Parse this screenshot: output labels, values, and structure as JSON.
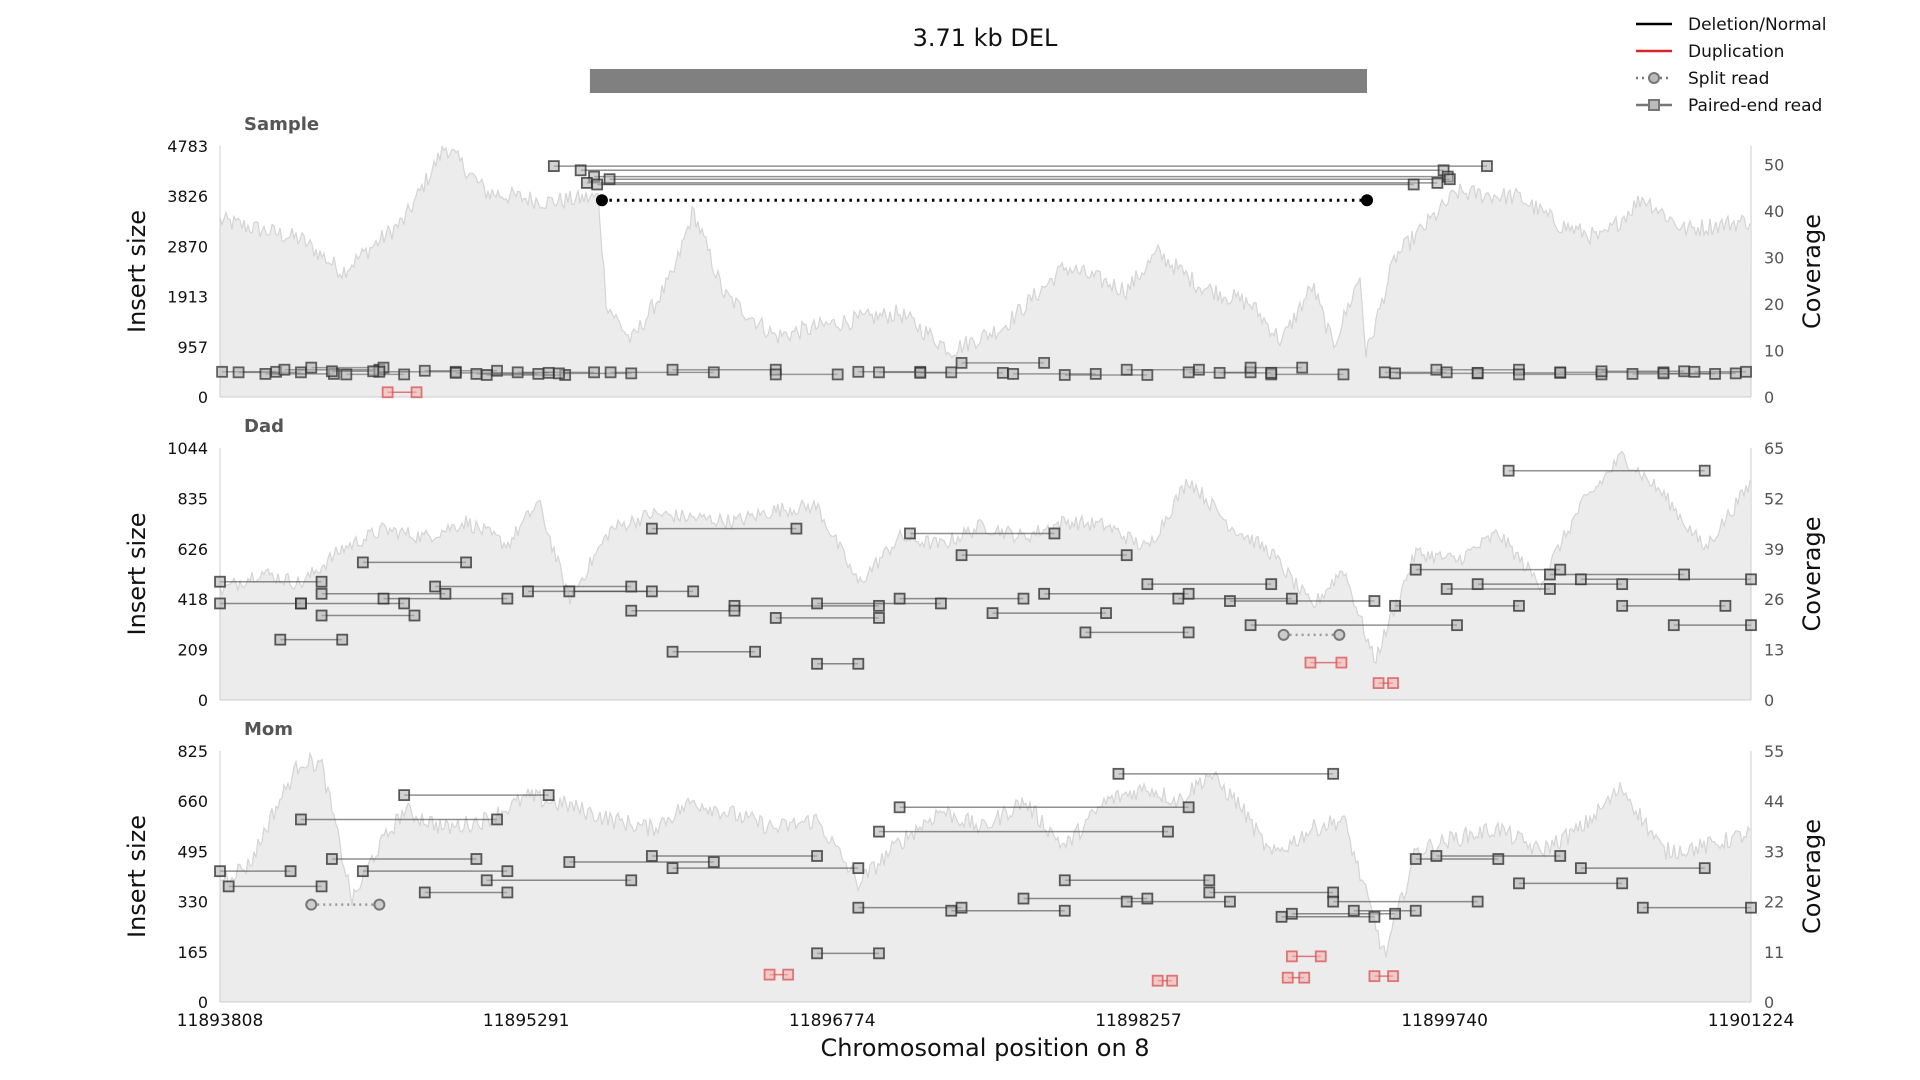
{
  "title": "3.71 kb DEL",
  "legend": [
    {
      "label": "Deletion/Normal",
      "style": "solid",
      "color": "#000000"
    },
    {
      "label": "Duplication",
      "style": "solid",
      "color": "#d62728"
    },
    {
      "label": "Split read",
      "style": "dotted-circle",
      "color": "#777777"
    },
    {
      "label": "Paired-end read",
      "style": "solid-square",
      "color": "#777777"
    }
  ],
  "colors": {
    "coverage_fill": "#ececec",
    "coverage_line": "#d4d4d4",
    "variant_bar": "#808080",
    "read": "#555555",
    "dup": "#e06060"
  },
  "xlabel": "Chromosomal position on 8",
  "x_ticks": [
    11893808,
    11895291,
    11896774,
    11898257,
    11899740,
    11901224
  ],
  "variant": {
    "start": 11895658,
    "end": 11899364
  },
  "chart_data": [
    {
      "type": "line",
      "name": "Sample",
      "ylabel": "Insert size",
      "y2label": "Coverage",
      "y_ticks": [
        0,
        957,
        1913,
        2870,
        3826,
        4783
      ],
      "y2_ticks": [
        0,
        10,
        20,
        30,
        40,
        50
      ],
      "ylim": [
        0,
        4783
      ],
      "y2lim": [
        0,
        54
      ],
      "coverage_key": [
        [
          11893808,
          38
        ],
        [
          11894200,
          34
        ],
        [
          11894400,
          27
        ],
        [
          11894700,
          38
        ],
        [
          11894900,
          54
        ],
        [
          11895100,
          44
        ],
        [
          11895400,
          42
        ],
        [
          11895640,
          43
        ],
        [
          11895680,
          20
        ],
        [
          11895800,
          12
        ],
        [
          11896000,
          26
        ],
        [
          11896100,
          40
        ],
        [
          11896250,
          22
        ],
        [
          11896500,
          13
        ],
        [
          11896800,
          16
        ],
        [
          11897100,
          18
        ],
        [
          11897350,
          10
        ],
        [
          11897600,
          15
        ],
        [
          11897900,
          28
        ],
        [
          11898200,
          23
        ],
        [
          11898350,
          31
        ],
        [
          11898550,
          24
        ],
        [
          11898800,
          20
        ],
        [
          11898950,
          12
        ],
        [
          11899100,
          24
        ],
        [
          11899200,
          11
        ],
        [
          11899330,
          26
        ],
        [
          11899360,
          9
        ],
        [
          11899500,
          30
        ],
        [
          11899800,
          44
        ],
        [
          11900100,
          43
        ],
        [
          11900300,
          37
        ],
        [
          11900500,
          34
        ],
        [
          11900700,
          43
        ],
        [
          11900900,
          36
        ],
        [
          11901224,
          38
        ]
      ],
      "split_reads": [
        [
          11895658,
          11899364,
          3750,
          "del"
        ]
      ],
      "long_pairs": [
        [
          11895555,
          11899735,
          4320
        ],
        [
          11895620,
          11899755,
          4200
        ],
        [
          11895695,
          11899765,
          4150
        ],
        [
          11895585,
          11899705,
          4080
        ],
        [
          11895635,
          11899590,
          4050
        ],
        [
          11895425,
          11899945,
          4400
        ]
      ],
      "short_pairs": [
        [
          11893818,
          11894080,
          480
        ],
        [
          11893898,
          11894200,
          470
        ],
        [
          11894028,
          11894360,
          440
        ],
        [
          11894120,
          11894580,
          520
        ],
        [
          11894250,
          11894600,
          560
        ],
        [
          11894420,
          11894700,
          430
        ],
        [
          11894580,
          11894950,
          480
        ],
        [
          11894800,
          11895150,
          500
        ],
        [
          11894950,
          11895400,
          460
        ],
        [
          11895100,
          11895480,
          420
        ],
        [
          11895250,
          11895620,
          470
        ],
        [
          11895450,
          11895800,
          450
        ],
        [
          11895700,
          11896200,
          470
        ],
        [
          11896000,
          11896500,
          520
        ],
        [
          11896500,
          11896800,
          430
        ],
        [
          11896900,
          11897200,
          480
        ],
        [
          11897200,
          11897600,
          460
        ],
        [
          11897400,
          11897800,
          650
        ],
        [
          11897650,
          11898050,
          440
        ],
        [
          11897900,
          11898300,
          420
        ],
        [
          11898200,
          11898550,
          520
        ],
        [
          11898500,
          11898800,
          470
        ],
        [
          11898800,
          11899050,
          560
        ],
        [
          11898900,
          11899250,
          430
        ],
        [
          11899500,
          11899900,
          450
        ],
        [
          11899700,
          11900100,
          520
        ],
        [
          11899900,
          11900300,
          460
        ],
        [
          11900100,
          11900500,
          430
        ],
        [
          11900300,
          11900800,
          470
        ],
        [
          11900500,
          11900900,
          490
        ],
        [
          11900800,
          11901150,
          450
        ],
        [
          11900950,
          11901200,
          480
        ],
        [
          11895050,
          11895350,
          440
        ],
        [
          11897000,
          11897350,
          470
        ],
        [
          11898650,
          11898900,
          460
        ],
        [
          11894350,
          11894550,
          490
        ],
        [
          11899450,
          11899750,
          470
        ],
        [
          11900650,
          11901050,
          440
        ]
      ],
      "dup_pairs": [
        [
          11894620,
          11894760,
          90
        ]
      ]
    },
    {
      "type": "line",
      "name": "Dad",
      "ylabel": "Insert size",
      "y2label": "Coverage",
      "y_ticks": [
        0,
        209,
        418,
        626,
        835,
        1044
      ],
      "y2_ticks": [
        0,
        13,
        26,
        39,
        52,
        65
      ],
      "ylim": [
        0,
        1044
      ],
      "y2lim": [
        0,
        65
      ],
      "coverage_key": [
        [
          11893808,
          28
        ],
        [
          11894000,
          33
        ],
        [
          11894200,
          30
        ],
        [
          11894400,
          39
        ],
        [
          11894600,
          44
        ],
        [
          11894800,
          42
        ],
        [
          11895000,
          46
        ],
        [
          11895200,
          40
        ],
        [
          11895350,
          51
        ],
        [
          11895500,
          26
        ],
        [
          11895700,
          44
        ],
        [
          11895900,
          48
        ],
        [
          11896100,
          47
        ],
        [
          11896300,
          46
        ],
        [
          11896500,
          49
        ],
        [
          11896700,
          50
        ],
        [
          11896900,
          30
        ],
        [
          11897100,
          42
        ],
        [
          11897300,
          40
        ],
        [
          11897500,
          45
        ],
        [
          11897700,
          42
        ],
        [
          11897900,
          46
        ],
        [
          11898100,
          45
        ],
        [
          11898300,
          39
        ],
        [
          11898500,
          57
        ],
        [
          11898700,
          45
        ],
        [
          11898900,
          38
        ],
        [
          11899100,
          24
        ],
        [
          11899250,
          34
        ],
        [
          11899400,
          10
        ],
        [
          11899600,
          38
        ],
        [
          11899800,
          36
        ],
        [
          11900000,
          43
        ],
        [
          11900200,
          30
        ],
        [
          11900400,
          50
        ],
        [
          11900600,
          63
        ],
        [
          11900800,
          53
        ],
        [
          11901000,
          39
        ],
        [
          11901224,
          56
        ]
      ],
      "split_reads": [
        [
          11898960,
          11899230,
          270,
          "other"
        ]
      ],
      "long_pairs": [
        [
          11898800,
          11899800,
          310
        ],
        [
          11900050,
          11901000,
          950
        ],
        [
          11895900,
          11896600,
          710
        ],
        [
          11897150,
          11897850,
          690
        ],
        [
          11894850,
          11895800,
          470
        ],
        [
          11894200,
          11894700,
          400
        ],
        [
          11893808,
          11894300,
          490
        ],
        [
          11894300,
          11894900,
          440
        ],
        [
          11895300,
          11896100,
          450
        ],
        [
          11896300,
          11897000,
          390
        ],
        [
          11897100,
          11897700,
          420
        ],
        [
          11897800,
          11898500,
          440
        ],
        [
          11898300,
          11898900,
          480
        ],
        [
          11899900,
          11900600,
          480
        ],
        [
          11900400,
          11901224,
          500
        ],
        [
          11894600,
          11895200,
          420
        ],
        [
          11895500,
          11895900,
          450
        ],
        [
          11896700,
          11897300,
          400
        ],
        [
          11897400,
          11898200,
          600
        ],
        [
          11898700,
          11899400,
          410
        ],
        [
          11899600,
          11900300,
          540
        ],
        [
          11900250,
          11900900,
          520
        ],
        [
          11894500,
          11895000,
          570
        ],
        [
          11893808,
          11894200,
          400
        ],
        [
          11895800,
          11896300,
          370
        ],
        [
          11896000,
          11896400,
          200
        ],
        [
          11896700,
          11896900,
          150
        ],
        [
          11898000,
          11898500,
          280
        ],
        [
          11899500,
          11900100,
          390
        ],
        [
          11900600,
          11901100,
          390
        ],
        [
          11894100,
          11894400,
          250
        ],
        [
          11894300,
          11894750,
          350
        ],
        [
          11897550,
          11898100,
          360
        ],
        [
          11898450,
          11899000,
          420
        ],
        [
          11899750,
          11900250,
          460
        ],
        [
          11900850,
          11901224,
          310
        ],
        [
          11896500,
          11897000,
          340
        ]
      ],
      "dup_pairs": [
        [
          11899090,
          11899240,
          155
        ],
        [
          11899420,
          11899490,
          70
        ]
      ]
    },
    {
      "type": "line",
      "name": "Mom",
      "ylabel": "Insert size",
      "y2label": "Coverage",
      "y_ticks": [
        0,
        165,
        330,
        495,
        660,
        825
      ],
      "y2_ticks": [
        0,
        11,
        22,
        33,
        44,
        55
      ],
      "ylim": [
        0,
        825
      ],
      "y2lim": [
        0,
        55
      ],
      "coverage_key": [
        [
          11893808,
          27
        ],
        [
          11893950,
          30
        ],
        [
          11894050,
          40
        ],
        [
          11894200,
          53
        ],
        [
          11894300,
          52
        ],
        [
          11894450,
          22
        ],
        [
          11894550,
          32
        ],
        [
          11894700,
          42
        ],
        [
          11894900,
          38
        ],
        [
          11895100,
          40
        ],
        [
          11895300,
          45
        ],
        [
          11895500,
          43
        ],
        [
          11895700,
          40
        ],
        [
          11895900,
          38
        ],
        [
          11896100,
          44
        ],
        [
          11896300,
          41
        ],
        [
          11896500,
          38
        ],
        [
          11896700,
          40
        ],
        [
          11896900,
          26
        ],
        [
          11897100,
          35
        ],
        [
          11897300,
          42
        ],
        [
          11897500,
          38
        ],
        [
          11897700,
          44
        ],
        [
          11897900,
          34
        ],
        [
          11898100,
          44
        ],
        [
          11898300,
          47
        ],
        [
          11898450,
          44
        ],
        [
          11898600,
          50
        ],
        [
          11898750,
          43
        ],
        [
          11898900,
          32
        ],
        [
          11899100,
          38
        ],
        [
          11899250,
          40
        ],
        [
          11899450,
          10
        ],
        [
          11899600,
          33
        ],
        [
          11899800,
          36
        ],
        [
          11900000,
          38
        ],
        [
          11900200,
          33
        ],
        [
          11900400,
          38
        ],
        [
          11900600,
          47
        ],
        [
          11900800,
          33
        ],
        [
          11901000,
          34
        ],
        [
          11901224,
          37
        ]
      ],
      "split_reads": [
        [
          11894250,
          11894580,
          320,
          "other"
        ]
      ],
      "long_pairs": [
        [
          11894700,
          11895400,
          680
        ],
        [
          11894200,
          11895150,
          600
        ],
        [
          11898160,
          11899200,
          750
        ],
        [
          11897100,
          11898500,
          640
        ],
        [
          11897000,
          11898400,
          560
        ],
        [
          11893808,
          11894150,
          430
        ],
        [
          11893850,
          11894300,
          380
        ],
        [
          11894350,
          11895050,
          470
        ],
        [
          11894500,
          11895200,
          430
        ],
        [
          11895100,
          11895800,
          400
        ],
        [
          11895500,
          11896200,
          460
        ],
        [
          11895900,
          11896700,
          480
        ],
        [
          11896000,
          11896900,
          440
        ],
        [
          11896900,
          11897400,
          310
        ],
        [
          11897350,
          11897900,
          300
        ],
        [
          11897700,
          11898300,
          340
        ],
        [
          11897900,
          11898600,
          400
        ],
        [
          11898200,
          11898700,
          330
        ],
        [
          11898600,
          11899200,
          360
        ],
        [
          11899000,
          11899500,
          290
        ],
        [
          11899200,
          11899900,
          330
        ],
        [
          11899600,
          11900000,
          470
        ],
        [
          11899700,
          11900300,
          480
        ],
        [
          11900100,
          11900600,
          390
        ],
        [
          11900400,
          11901000,
          440
        ],
        [
          11900700,
          11901224,
          310
        ],
        [
          11896700,
          11897000,
          160
        ],
        [
          11894800,
          11895200,
          360
        ],
        [
          11898950,
          11899400,
          280
        ],
        [
          11899300,
          11899600,
          300
        ]
      ],
      "dup_pairs": [
        [
          11896470,
          11896560,
          90
        ],
        [
          11898350,
          11898420,
          70
        ],
        [
          11898980,
          11899060,
          80
        ],
        [
          11899000,
          11899140,
          150
        ],
        [
          11899400,
          11899490,
          85
        ]
      ]
    }
  ]
}
